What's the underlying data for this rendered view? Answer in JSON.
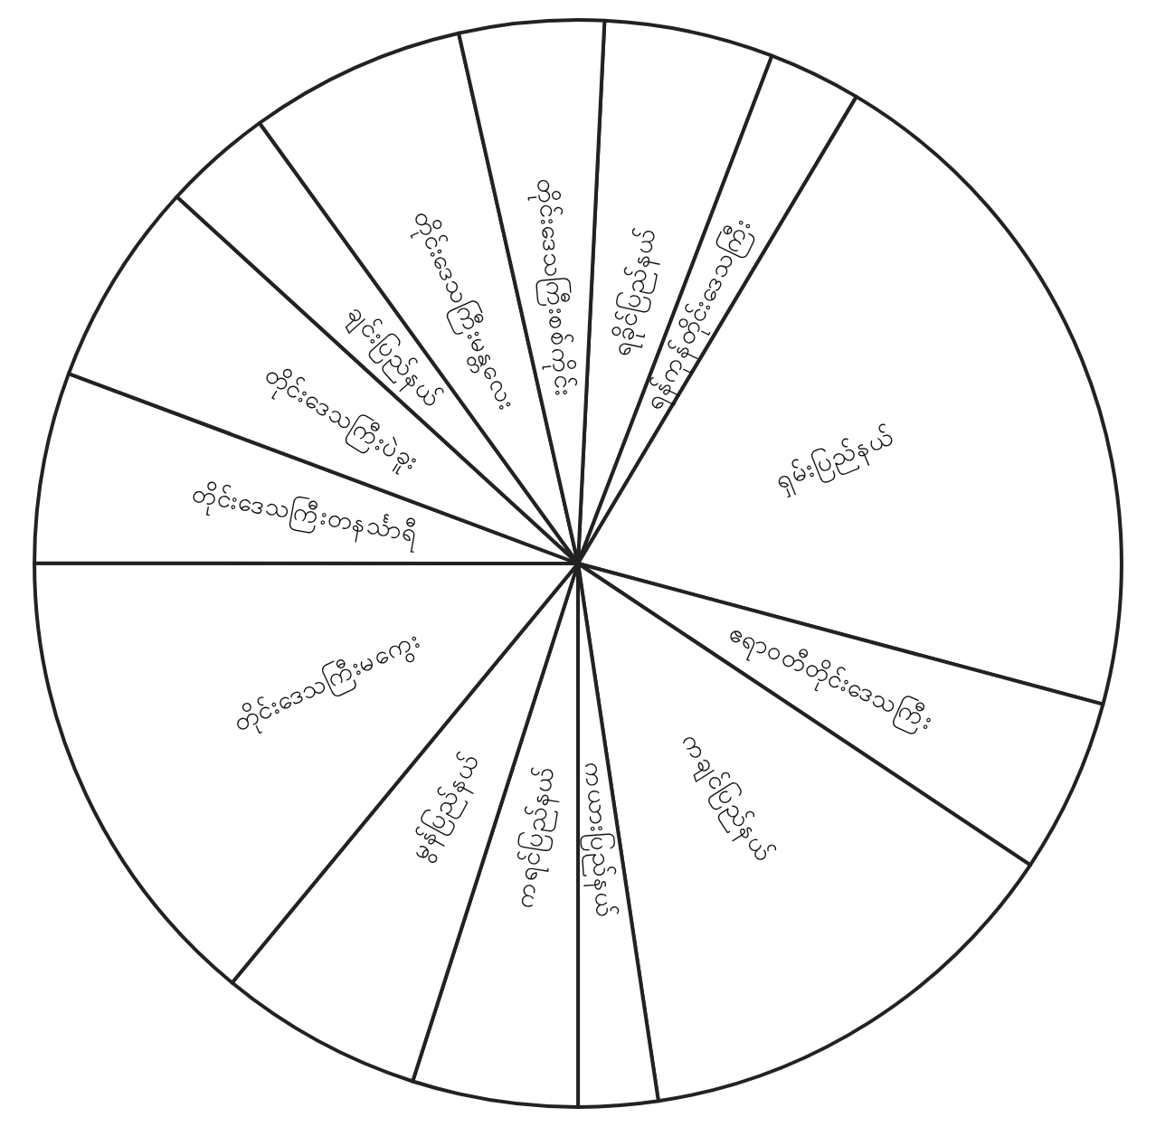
{
  "chart_data": {
    "type": "pie",
    "categories": [
      "ရခိုင်ပြည်နယ်",
      "ရန်ကုန်တိုင်းဒေသကြီး",
      "ရှမ်းပြည်နယ်",
      "ဧရာဝတီတိုင်းဒေသကြီး",
      "ကချင်ပြည်နယ်",
      "ကယားပြည်နယ်",
      "ကရင်ပြည်နယ်",
      "မွန်ပြည်နယ်",
      "တိုင်းဒေသကြီးမကွေး",
      "တိုင်းဒေသကြီးတနင်္သာရီ",
      "တိုင်းဒေသကြီးပဲခူး",
      "ချင်းပြည်နယ်",
      "တိုင်းဒေသကြီးမန္တလေး",
      "တိုင်းဒေသကြီးစစ်ကိုင်း"
    ],
    "values": [
      5.03,
      2.75,
      20.61,
      5.19,
      13.28,
      2.36,
      4.92,
      6.06,
      14.03,
      5.67,
      6.11,
      3.25,
      6.44,
      4.3
    ],
    "colors": [
      "#ffffff",
      "#ffffff",
      "#ffffff",
      "#ffffff",
      "#ffffff",
      "#ffffff",
      "#ffffff",
      "#ffffff",
      "#ffffff",
      "#ffffff",
      "#ffffff",
      "#ffffff",
      "#ffffff",
      "#ffffff"
    ],
    "data_labels": false
  }
}
